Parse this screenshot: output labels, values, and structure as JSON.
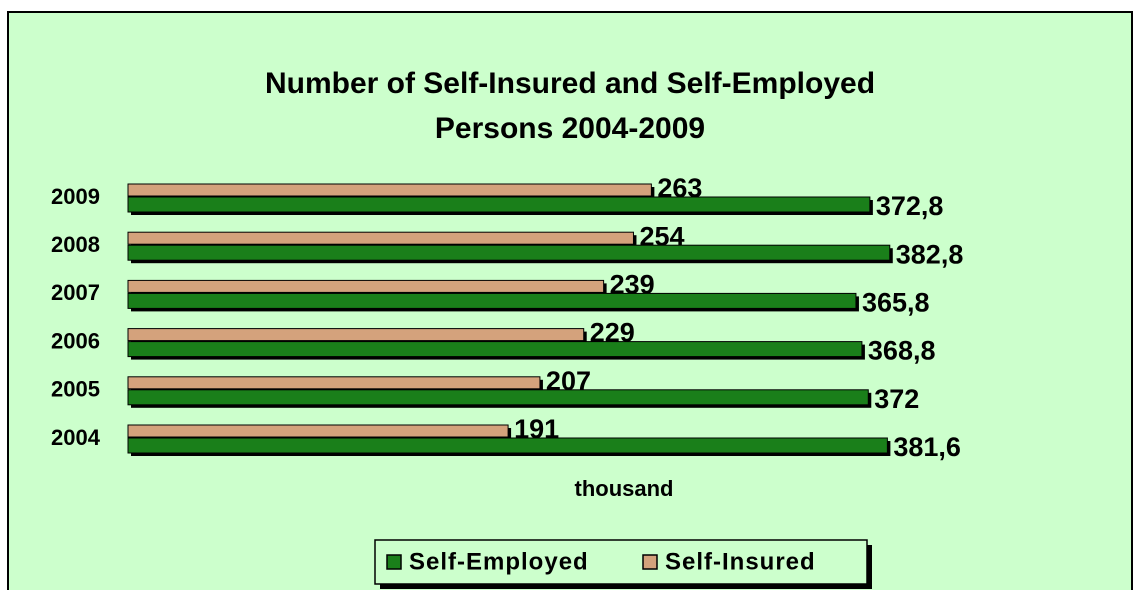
{
  "chart_data": {
    "type": "bar",
    "orientation": "horizontal",
    "title": [
      "Number of Self-Insured and Self-Employed",
      "Persons  2004-2009"
    ],
    "x_label": "thousand",
    "categories": [
      "2009",
      "2008",
      "2007",
      "2006",
      "2005",
      "2004"
    ],
    "series": [
      {
        "name": "Self-Employed",
        "color": "#1a7f1a",
        "values": [
          372.8,
          382.8,
          365.8,
          368.8,
          372,
          381.6
        ],
        "value_labels": [
          "372,8",
          "382,8",
          "365,8",
          "368,8",
          "372",
          "381,6"
        ]
      },
      {
        "name": "Self-Insured",
        "color": "#d4a27c",
        "values": [
          263,
          254,
          239,
          229,
          207,
          191
        ]
      }
    ],
    "xlim": [
      0,
      500
    ],
    "legend": "bottom"
  }
}
